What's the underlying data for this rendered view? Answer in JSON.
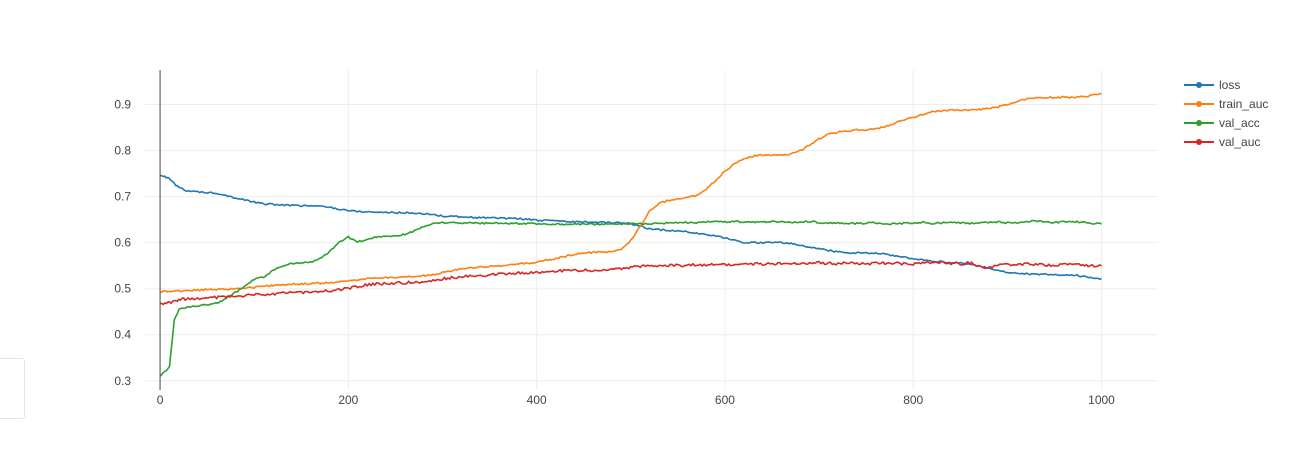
{
  "chart_data": {
    "type": "line",
    "title": "",
    "xlabel": "",
    "ylabel": "",
    "xlim": [
      -16,
      1060
    ],
    "ylim": [
      0.28,
      0.975
    ],
    "x_ticks": [
      0,
      200,
      400,
      600,
      800,
      1000
    ],
    "x_tick_labels": [
      "0",
      "200",
      "400",
      "600",
      "800",
      "1000"
    ],
    "y_ticks": [
      0.3,
      0.4,
      0.5,
      0.6,
      0.7,
      0.8,
      0.9
    ],
    "y_tick_labels": [
      "0.3",
      "0.4",
      "0.5",
      "0.6",
      "0.7",
      "0.8",
      "0.9"
    ],
    "grid": true,
    "legend_position": "top-right",
    "x": [
      0,
      5,
      10,
      15,
      20,
      25,
      30,
      40,
      50,
      60,
      70,
      80,
      90,
      100,
      110,
      120,
      130,
      140,
      150,
      160,
      170,
      180,
      190,
      200,
      210,
      220,
      230,
      240,
      250,
      260,
      270,
      280,
      290,
      300,
      325,
      350,
      375,
      400,
      425,
      450,
      475,
      490,
      500,
      510,
      520,
      530,
      540,
      550,
      560,
      570,
      580,
      590,
      600,
      610,
      620,
      630,
      640,
      650,
      660,
      670,
      680,
      690,
      700,
      710,
      720,
      730,
      740,
      750,
      760,
      770,
      780,
      790,
      800,
      810,
      820,
      830,
      840,
      850,
      860,
      870,
      880,
      890,
      900,
      910,
      920,
      930,
      940,
      950,
      960,
      970,
      980,
      990,
      1000
    ],
    "series": [
      {
        "name": "loss",
        "color": "#1f77b4",
        "values": [
          0.746,
          0.744,
          0.738,
          0.728,
          0.72,
          0.715,
          0.712,
          0.71,
          0.709,
          0.708,
          0.703,
          0.697,
          0.693,
          0.688,
          0.684,
          0.683,
          0.682,
          0.681,
          0.68,
          0.68,
          0.679,
          0.677,
          0.673,
          0.67,
          0.668,
          0.667,
          0.666,
          0.666,
          0.665,
          0.665,
          0.664,
          0.663,
          0.661,
          0.658,
          0.655,
          0.654,
          0.653,
          0.649,
          0.646,
          0.645,
          0.644,
          0.643,
          0.641,
          0.636,
          0.63,
          0.628,
          0.627,
          0.625,
          0.624,
          0.62,
          0.618,
          0.614,
          0.61,
          0.605,
          0.601,
          0.6,
          0.6,
          0.601,
          0.6,
          0.598,
          0.594,
          0.59,
          0.587,
          0.583,
          0.58,
          0.578,
          0.578,
          0.578,
          0.577,
          0.575,
          0.572,
          0.568,
          0.565,
          0.562,
          0.56,
          0.559,
          0.557,
          0.556,
          0.553,
          0.55,
          0.545,
          0.54,
          0.536,
          0.533,
          0.532,
          0.531,
          0.531,
          0.53,
          0.53,
          0.53,
          0.527,
          0.524,
          0.522
        ]
      },
      {
        "name": "train_auc",
        "color": "#ff7f0e",
        "values": [
          0.492,
          0.494,
          0.494,
          0.495,
          0.495,
          0.495,
          0.496,
          0.497,
          0.498,
          0.498,
          0.499,
          0.5,
          0.501,
          0.503,
          0.505,
          0.507,
          0.509,
          0.51,
          0.51,
          0.511,
          0.512,
          0.513,
          0.514,
          0.517,
          0.52,
          0.522,
          0.523,
          0.524,
          0.525,
          0.526,
          0.527,
          0.528,
          0.53,
          0.535,
          0.545,
          0.548,
          0.552,
          0.558,
          0.568,
          0.578,
          0.58,
          0.585,
          0.605,
          0.635,
          0.668,
          0.685,
          0.692,
          0.695,
          0.698,
          0.702,
          0.715,
          0.735,
          0.755,
          0.772,
          0.783,
          0.788,
          0.79,
          0.79,
          0.79,
          0.792,
          0.8,
          0.812,
          0.825,
          0.835,
          0.84,
          0.843,
          0.845,
          0.845,
          0.847,
          0.852,
          0.86,
          0.867,
          0.872,
          0.878,
          0.884,
          0.887,
          0.888,
          0.888,
          0.888,
          0.889,
          0.891,
          0.895,
          0.9,
          0.907,
          0.912,
          0.915,
          0.915,
          0.915,
          0.916,
          0.915,
          0.917,
          0.92,
          0.924
        ]
      },
      {
        "name": "val_acc",
        "color": "#2ca02c",
        "values": [
          0.31,
          0.32,
          0.33,
          0.43,
          0.455,
          0.457,
          0.46,
          0.462,
          0.465,
          0.468,
          0.478,
          0.492,
          0.505,
          0.52,
          0.525,
          0.54,
          0.55,
          0.555,
          0.556,
          0.557,
          0.565,
          0.58,
          0.6,
          0.612,
          0.602,
          0.606,
          0.612,
          0.614,
          0.615,
          0.618,
          0.625,
          0.635,
          0.641,
          0.643,
          0.643,
          0.642,
          0.642,
          0.641,
          0.64,
          0.64,
          0.64,
          0.641,
          0.641,
          0.641,
          0.641,
          0.642,
          0.643,
          0.643,
          0.644,
          0.644,
          0.645,
          0.646,
          0.645,
          0.646,
          0.645,
          0.644,
          0.645,
          0.646,
          0.645,
          0.644,
          0.645,
          0.646,
          0.644,
          0.642,
          0.643,
          0.641,
          0.642,
          0.642,
          0.643,
          0.641,
          0.641,
          0.642,
          0.643,
          0.644,
          0.642,
          0.643,
          0.645,
          0.643,
          0.642,
          0.643,
          0.644,
          0.645,
          0.643,
          0.644,
          0.646,
          0.647,
          0.645,
          0.644,
          0.645,
          0.646,
          0.644,
          0.642,
          0.641
        ]
      },
      {
        "name": "val_auc",
        "color": "#d62728",
        "values": [
          0.468,
          0.468,
          0.47,
          0.474,
          0.476,
          0.477,
          0.478,
          0.479,
          0.48,
          0.481,
          0.482,
          0.483,
          0.485,
          0.487,
          0.488,
          0.489,
          0.49,
          0.491,
          0.492,
          0.493,
          0.494,
          0.496,
          0.498,
          0.501,
          0.505,
          0.508,
          0.51,
          0.511,
          0.512,
          0.513,
          0.514,
          0.516,
          0.518,
          0.522,
          0.527,
          0.53,
          0.533,
          0.536,
          0.539,
          0.54,
          0.541,
          0.544,
          0.547,
          0.549,
          0.55,
          0.55,
          0.551,
          0.55,
          0.551,
          0.552,
          0.551,
          0.552,
          0.553,
          0.552,
          0.553,
          0.554,
          0.554,
          0.555,
          0.554,
          0.555,
          0.556,
          0.555,
          0.556,
          0.555,
          0.554,
          0.556,
          0.555,
          0.554,
          0.556,
          0.555,
          0.556,
          0.554,
          0.553,
          0.555,
          0.556,
          0.557,
          0.555,
          0.554,
          0.556,
          0.55,
          0.545,
          0.552,
          0.553,
          0.552,
          0.554,
          0.553,
          0.552,
          0.551,
          0.553,
          0.552,
          0.551,
          0.55,
          0.549
        ]
      }
    ]
  }
}
